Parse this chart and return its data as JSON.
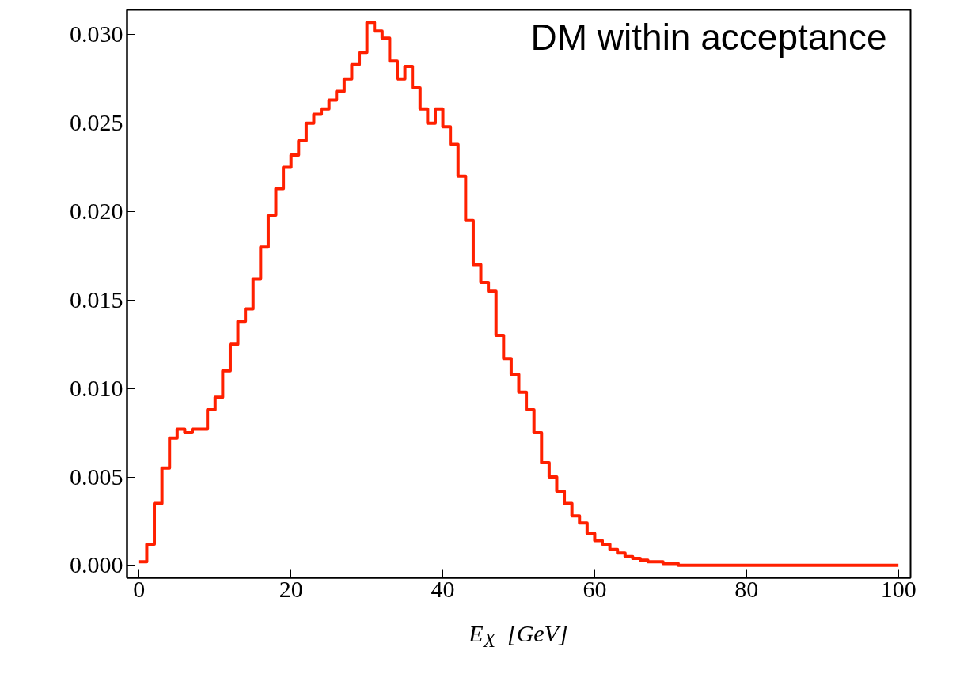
{
  "chart_data": {
    "type": "step",
    "xlabel": "E$_{X}$ [GeV]",
    "annotations": [
      "DM within acceptance"
    ],
    "x": [
      0,
      1,
      2,
      3,
      4,
      5,
      6,
      7,
      8,
      9,
      10,
      11,
      12,
      13,
      14,
      15,
      16,
      17,
      18,
      19,
      20,
      21,
      22,
      23,
      24,
      25,
      26,
      27,
      28,
      29,
      30,
      31,
      32,
      33,
      34,
      35,
      36,
      37,
      38,
      39,
      40,
      41,
      42,
      43,
      44,
      45,
      46,
      47,
      48,
      49,
      50,
      51,
      52,
      53,
      54,
      55,
      56,
      57,
      58,
      59,
      60,
      61,
      62,
      63,
      64,
      65,
      66,
      67,
      68,
      69,
      70,
      71,
      72,
      73,
      74,
      75,
      76,
      77,
      78,
      79,
      80,
      81,
      82,
      83,
      84,
      85,
      86,
      87,
      88,
      89,
      90,
      91,
      92,
      93,
      94,
      95,
      96,
      97,
      98,
      99,
      100
    ],
    "series": [
      {
        "color": "#ff2000",
        "values": [
          0.0002,
          0.0012,
          0.0035,
          0.0055,
          0.0072,
          0.0077,
          0.0075,
          0.0077,
          0.0077,
          0.0088,
          0.0095,
          0.011,
          0.0125,
          0.0138,
          0.0145,
          0.0162,
          0.018,
          0.0198,
          0.0213,
          0.0225,
          0.0232,
          0.024,
          0.025,
          0.0255,
          0.0258,
          0.0263,
          0.0268,
          0.0275,
          0.0283,
          0.029,
          0.0307,
          0.0302,
          0.0298,
          0.0285,
          0.0275,
          0.0282,
          0.027,
          0.0258,
          0.025,
          0.0258,
          0.0248,
          0.0238,
          0.022,
          0.0195,
          0.017,
          0.016,
          0.0155,
          0.013,
          0.0117,
          0.0108,
          0.0098,
          0.0088,
          0.0075,
          0.0058,
          0.005,
          0.0042,
          0.0035,
          0.0028,
          0.0024,
          0.0018,
          0.0014,
          0.0012,
          0.0009,
          0.0007,
          0.0005,
          0.0004,
          0.0003,
          0.0002,
          0.0002,
          0.0001,
          0.0001,
          0,
          0,
          0,
          0,
          0,
          0,
          0,
          0,
          0,
          0,
          0,
          0,
          0,
          0,
          0,
          0,
          0,
          0,
          0,
          0,
          0,
          0,
          0,
          0,
          0,
          0,
          0,
          0,
          0,
          0
        ]
      }
    ],
    "xlim": [
      -1.6,
      101.6
    ],
    "ylim": [
      -0.0007,
      0.0314
    ],
    "xticks": [
      0,
      20,
      40,
      60,
      80,
      100
    ],
    "yticks": [
      {
        "value": 0,
        "label": "0.000"
      },
      {
        "value": 0.005,
        "label": "0.005"
      },
      {
        "value": 0.01,
        "label": "0.010"
      },
      {
        "value": 0.015,
        "label": "0.015"
      },
      {
        "value": 0.02,
        "label": "0.020"
      },
      {
        "value": 0.025,
        "label": "0.025"
      },
      {
        "value": 0.03,
        "label": "0.030"
      }
    ],
    "grid": false
  }
}
